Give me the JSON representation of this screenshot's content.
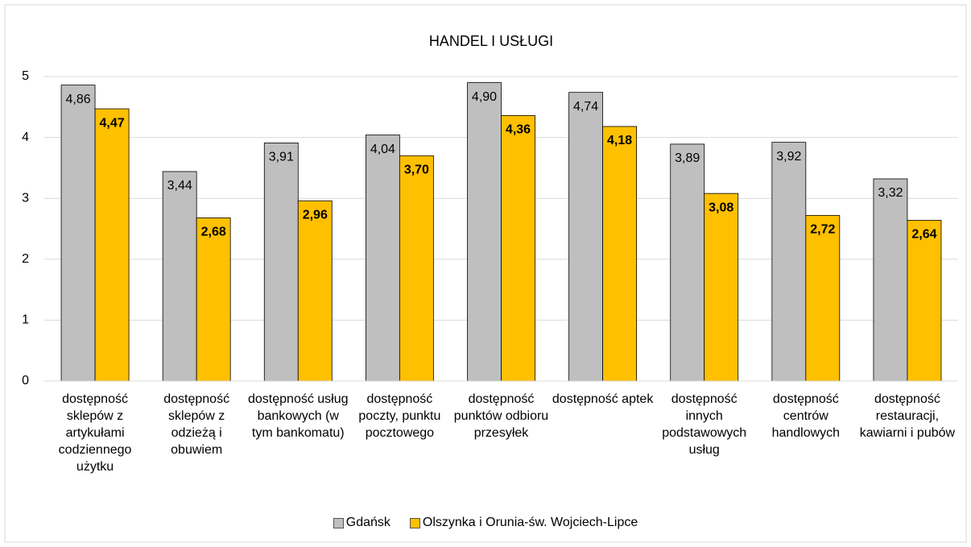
{
  "chart_data": {
    "type": "bar",
    "title": "HANDEL I USŁUGI",
    "categories": [
      "dostępność sklepów z artykułami codziennego użytku",
      "dostępność sklepów z odzieżą i obuwiem",
      "dostępność usług bankowych (w tym bankomatu)",
      "dostępność poczty, punktu pocztowego",
      "dostępność punktów odbioru przesyłek",
      "dostępność aptek",
      "dostępność innych podstawowych usług",
      "dostępność centrów handlowych",
      "dostępność restauracji, kawiarni i pubów"
    ],
    "series": [
      {
        "name": "Gdańsk",
        "color": "#bfbfbf",
        "values": [
          4.86,
          3.44,
          3.91,
          4.04,
          4.9,
          4.74,
          3.89,
          3.92,
          3.32
        ],
        "value_labels": [
          "4,86",
          "3,44",
          "3,91",
          "4,04",
          "4,90",
          "4,74",
          "3,89",
          "3,92",
          "3,32"
        ]
      },
      {
        "name": "Olszynka i Orunia-św. Wojciech-Lipce",
        "color": "#ffc000",
        "values": [
          4.47,
          2.68,
          2.96,
          3.7,
          4.36,
          4.18,
          3.08,
          2.72,
          2.64
        ],
        "value_labels": [
          "4,47",
          "2,68",
          "2,96",
          "3,70",
          "4,36",
          "4,18",
          "3,08",
          "2,72",
          "2,64"
        ]
      }
    ],
    "ylim": [
      0,
      5
    ],
    "yticks": [
      0,
      1,
      2,
      3,
      4,
      5
    ],
    "grid": true,
    "legend": "bottom"
  }
}
